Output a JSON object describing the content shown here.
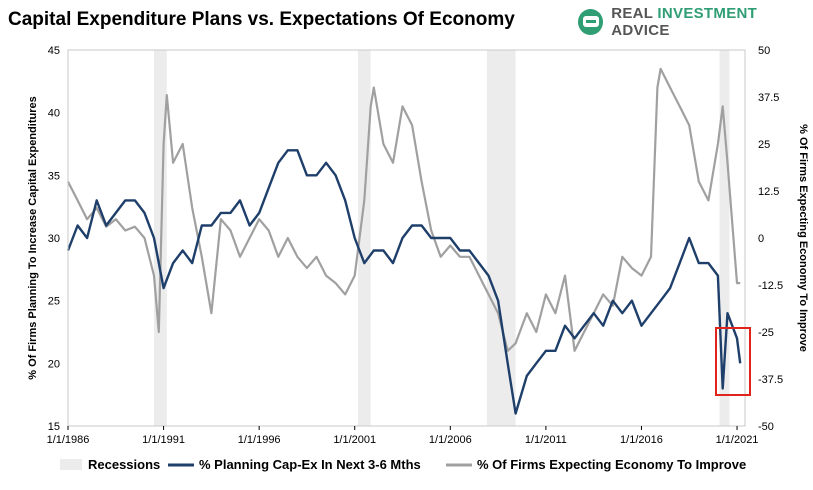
{
  "title": "Capital Expenditure Plans vs. Expectations Of Economy",
  "brand": {
    "part1": "REAL ",
    "part2": "INVESTMENT",
    "part3": " ADVICE",
    "icon": "chat-bubble-icon",
    "color": "#2f9e74"
  },
  "chart_data": {
    "type": "line",
    "title": "Capital Expenditure Plans vs. Expectations Of Economy",
    "x_tick_labels": [
      "1/1/1986",
      "1/1/1991",
      "1/1/1996",
      "1/1/2001",
      "1/1/2006",
      "1/1/2011",
      "1/1/2016",
      "1/1/2021"
    ],
    "xlim": [
      "1986-01-01",
      "2021-06-01"
    ],
    "y_left": {
      "label": "% Of Firms Planning To Increase Capital Expenditures",
      "ylim": [
        15,
        45
      ],
      "ticks": [
        "15",
        "20",
        "25",
        "30",
        "35",
        "40",
        "45"
      ]
    },
    "y_right": {
      "label": "% Of Firms Expecting Economy To Improve",
      "ylim": [
        -50,
        50
      ],
      "ticks": [
        "-50",
        "-37.5",
        "-25",
        "-12.5",
        "0",
        "12.5",
        "25",
        "37.5",
        "50"
      ]
    },
    "legend": [
      "Recessions",
      "% Planning Cap-Ex In Next 3-6 Mths",
      "% Of Firms Expecting Economy To Improve"
    ],
    "legend_position": "bottom",
    "recessions": [
      [
        "1990-07-01",
        "1991-03-01"
      ],
      [
        "2001-03-01",
        "2001-11-01"
      ],
      [
        "2007-12-01",
        "2009-06-01"
      ],
      [
        "2020-02-01",
        "2020-04-01"
      ]
    ],
    "series": [
      {
        "name": "% Planning Cap-Ex In Next 3-6 Mths",
        "axis": "left",
        "color": "#1f3f6b",
        "points": [
          [
            "1986-01-01",
            29
          ],
          [
            "1986-07-01",
            31
          ],
          [
            "1987-01-01",
            30
          ],
          [
            "1987-07-01",
            33
          ],
          [
            "1988-01-01",
            31
          ],
          [
            "1988-07-01",
            32
          ],
          [
            "1989-01-01",
            33
          ],
          [
            "1989-07-01",
            33
          ],
          [
            "1990-01-01",
            32
          ],
          [
            "1990-07-01",
            30
          ],
          [
            "1991-01-01",
            26
          ],
          [
            "1991-07-01",
            28
          ],
          [
            "1992-01-01",
            29
          ],
          [
            "1992-07-01",
            28
          ],
          [
            "1993-01-01",
            31
          ],
          [
            "1993-07-01",
            31
          ],
          [
            "1994-01-01",
            32
          ],
          [
            "1994-07-01",
            32
          ],
          [
            "1995-01-01",
            33
          ],
          [
            "1995-07-01",
            31
          ],
          [
            "1996-01-01",
            32
          ],
          [
            "1996-07-01",
            34
          ],
          [
            "1997-01-01",
            36
          ],
          [
            "1997-07-01",
            37
          ],
          [
            "1998-01-01",
            37
          ],
          [
            "1998-07-01",
            35
          ],
          [
            "1999-01-01",
            35
          ],
          [
            "1999-07-01",
            36
          ],
          [
            "2000-01-01",
            35
          ],
          [
            "2000-07-01",
            33
          ],
          [
            "2001-01-01",
            30
          ],
          [
            "2001-07-01",
            28
          ],
          [
            "2002-01-01",
            29
          ],
          [
            "2002-07-01",
            29
          ],
          [
            "2003-01-01",
            28
          ],
          [
            "2003-07-01",
            30
          ],
          [
            "2004-01-01",
            31
          ],
          [
            "2004-07-01",
            31
          ],
          [
            "2005-01-01",
            30
          ],
          [
            "2005-07-01",
            30
          ],
          [
            "2006-01-01",
            30
          ],
          [
            "2006-07-01",
            29
          ],
          [
            "2007-01-01",
            29
          ],
          [
            "2007-07-01",
            28
          ],
          [
            "2008-01-01",
            27
          ],
          [
            "2008-07-01",
            25
          ],
          [
            "2009-01-01",
            20
          ],
          [
            "2009-06-01",
            16
          ],
          [
            "2010-01-01",
            19
          ],
          [
            "2010-07-01",
            20
          ],
          [
            "2011-01-01",
            21
          ],
          [
            "2011-07-01",
            21
          ],
          [
            "2012-01-01",
            23
          ],
          [
            "2012-07-01",
            22
          ],
          [
            "2013-01-01",
            23
          ],
          [
            "2013-07-01",
            24
          ],
          [
            "2014-01-01",
            23
          ],
          [
            "2014-07-01",
            25
          ],
          [
            "2015-01-01",
            24
          ],
          [
            "2015-07-01",
            25
          ],
          [
            "2016-01-01",
            23
          ],
          [
            "2016-07-01",
            24
          ],
          [
            "2017-01-01",
            25
          ],
          [
            "2017-07-01",
            26
          ],
          [
            "2018-01-01",
            28
          ],
          [
            "2018-07-01",
            30
          ],
          [
            "2019-01-01",
            28
          ],
          [
            "2019-07-01",
            28
          ],
          [
            "2020-01-01",
            27
          ],
          [
            "2020-04-01",
            18
          ],
          [
            "2020-07-01",
            24
          ],
          [
            "2021-01-01",
            22
          ],
          [
            "2021-03-01",
            20
          ]
        ]
      },
      {
        "name": "% Of Firms Expecting Economy To Improve",
        "axis": "right",
        "color": "#a0a0a0",
        "points": [
          [
            "1986-01-01",
            15
          ],
          [
            "1986-07-01",
            10
          ],
          [
            "1987-01-01",
            5
          ],
          [
            "1987-07-01",
            8
          ],
          [
            "1988-01-01",
            3
          ],
          [
            "1988-07-01",
            5
          ],
          [
            "1989-01-01",
            2
          ],
          [
            "1989-07-01",
            3
          ],
          [
            "1990-01-01",
            0
          ],
          [
            "1990-07-01",
            -10
          ],
          [
            "1990-10-01",
            -25
          ],
          [
            "1991-01-01",
            25
          ],
          [
            "1991-03-01",
            38
          ],
          [
            "1991-07-01",
            20
          ],
          [
            "1992-01-01",
            25
          ],
          [
            "1992-07-01",
            8
          ],
          [
            "1993-01-01",
            -5
          ],
          [
            "1993-07-01",
            -20
          ],
          [
            "1994-01-01",
            5
          ],
          [
            "1994-07-01",
            2
          ],
          [
            "1995-01-01",
            -5
          ],
          [
            "1995-07-01",
            0
          ],
          [
            "1996-01-01",
            5
          ],
          [
            "1996-07-01",
            2
          ],
          [
            "1997-01-01",
            -5
          ],
          [
            "1997-07-01",
            0
          ],
          [
            "1998-01-01",
            -5
          ],
          [
            "1998-07-01",
            -8
          ],
          [
            "1999-01-01",
            -5
          ],
          [
            "1999-07-01",
            -10
          ],
          [
            "2000-01-01",
            -12
          ],
          [
            "2000-07-01",
            -15
          ],
          [
            "2001-01-01",
            -10
          ],
          [
            "2001-07-01",
            10
          ],
          [
            "2001-11-01",
            35
          ],
          [
            "2002-01-01",
            40
          ],
          [
            "2002-07-01",
            25
          ],
          [
            "2003-01-01",
            20
          ],
          [
            "2003-07-01",
            35
          ],
          [
            "2004-01-01",
            30
          ],
          [
            "2004-07-01",
            15
          ],
          [
            "2005-01-01",
            2
          ],
          [
            "2005-07-01",
            -5
          ],
          [
            "2006-01-01",
            -2
          ],
          [
            "2006-07-01",
            -5
          ],
          [
            "2007-01-01",
            -5
          ],
          [
            "2007-07-01",
            -10
          ],
          [
            "2008-01-01",
            -15
          ],
          [
            "2008-07-01",
            -20
          ],
          [
            "2009-01-01",
            -30
          ],
          [
            "2009-06-01",
            -28
          ],
          [
            "2010-01-01",
            -20
          ],
          [
            "2010-07-01",
            -25
          ],
          [
            "2011-01-01",
            -15
          ],
          [
            "2011-07-01",
            -20
          ],
          [
            "2012-01-01",
            -10
          ],
          [
            "2012-07-01",
            -30
          ],
          [
            "2013-01-01",
            -25
          ],
          [
            "2013-07-01",
            -20
          ],
          [
            "2014-01-01",
            -15
          ],
          [
            "2014-07-01",
            -18
          ],
          [
            "2015-01-01",
            -5
          ],
          [
            "2015-07-01",
            -8
          ],
          [
            "2016-01-01",
            -10
          ],
          [
            "2016-07-01",
            -5
          ],
          [
            "2016-11-01",
            40
          ],
          [
            "2017-01-01",
            45
          ],
          [
            "2017-07-01",
            40
          ],
          [
            "2018-01-01",
            35
          ],
          [
            "2018-07-01",
            30
          ],
          [
            "2019-01-01",
            15
          ],
          [
            "2019-07-01",
            10
          ],
          [
            "2020-01-01",
            25
          ],
          [
            "2020-04-01",
            35
          ],
          [
            "2020-07-01",
            20
          ],
          [
            "2021-01-01",
            -12
          ],
          [
            "2021-03-01",
            -12
          ]
        ]
      }
    ]
  }
}
